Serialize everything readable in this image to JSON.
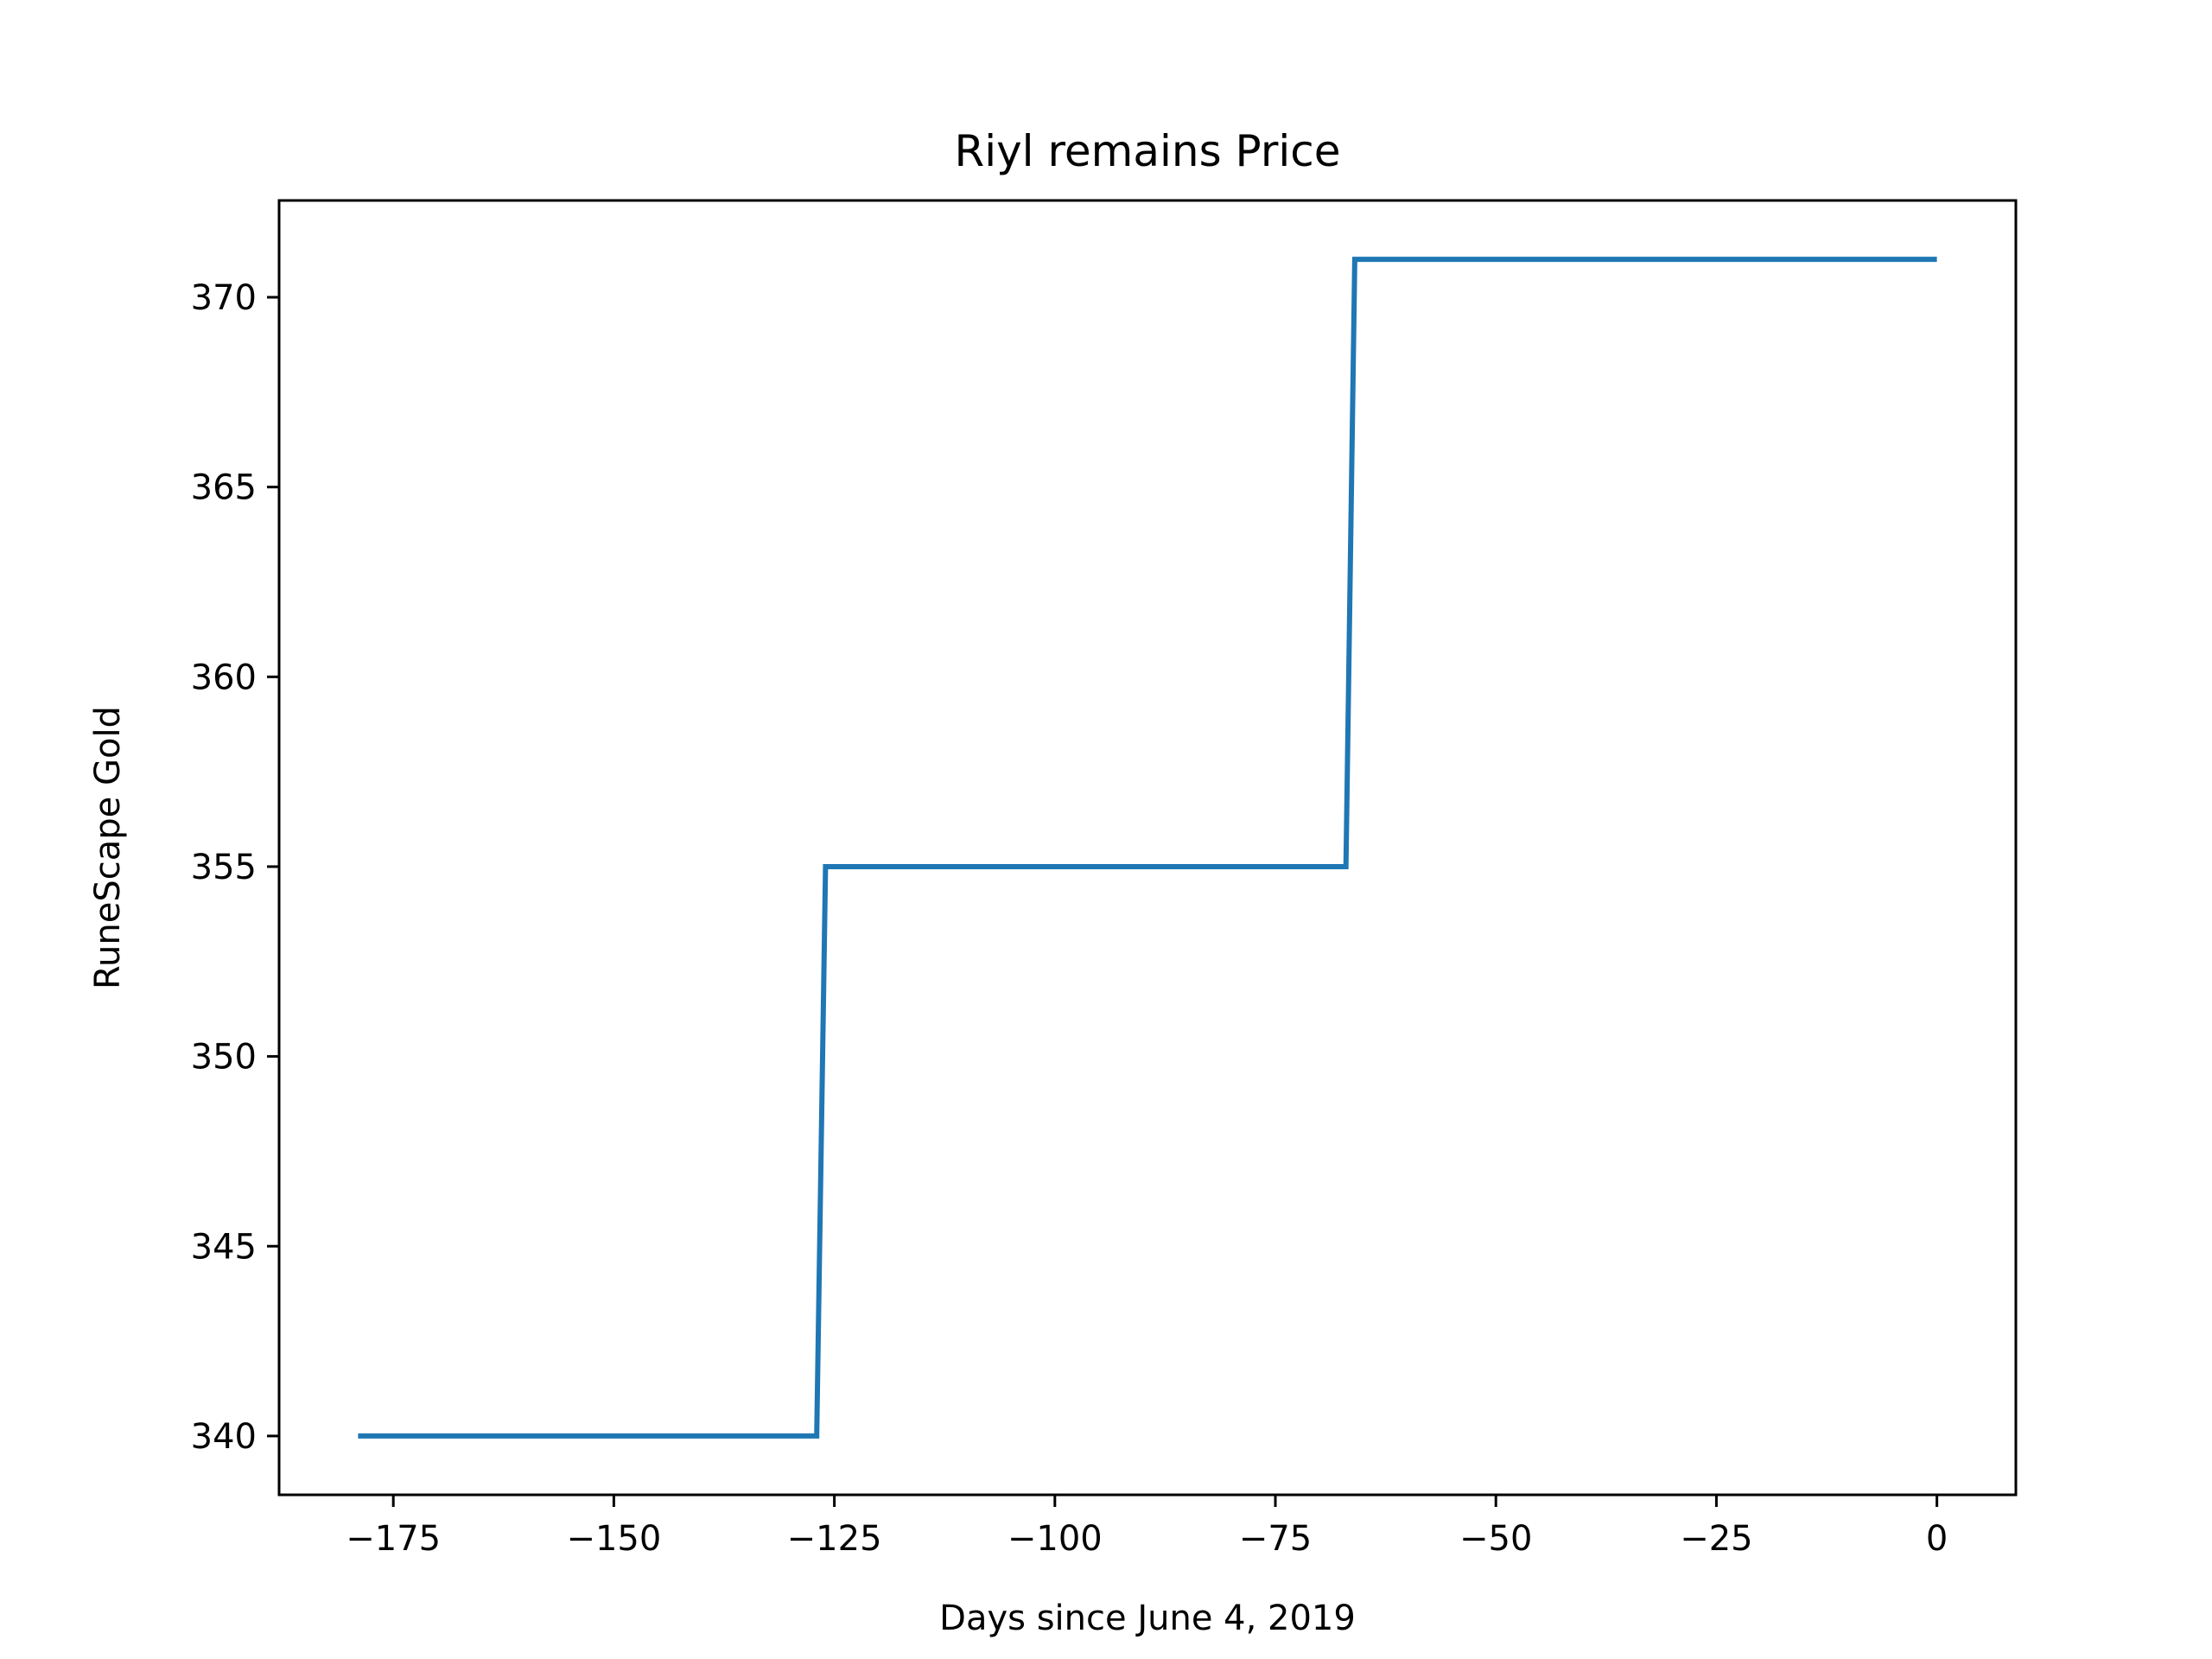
{
  "chart_data": {
    "type": "line",
    "title": "Riyl remains Price",
    "xlabel": "Days since June 4, 2019",
    "ylabel": "RuneScape Gold",
    "xlim": [
      -187.95,
      8.95
    ],
    "ylim": [
      338.45,
      372.55
    ],
    "grid": false,
    "legend": "none",
    "xticks": [
      -175,
      -150,
      -125,
      -100,
      -75,
      -50,
      -25,
      0
    ],
    "xtick_labels": [
      "−175",
      "−150",
      "−125",
      "−100",
      "−75",
      "−50",
      "−25",
      "0"
    ],
    "yticks": [
      340,
      345,
      350,
      355,
      360,
      365,
      370
    ],
    "ytick_labels": [
      "340",
      "345",
      "350",
      "355",
      "360",
      "365",
      "370"
    ],
    "series": [
      {
        "color": "#1f77b4",
        "x": [
          -179,
          -127,
          -126,
          -67,
          -66,
          0
        ],
        "y": [
          340,
          340,
          355,
          355,
          371,
          371
        ]
      }
    ]
  }
}
